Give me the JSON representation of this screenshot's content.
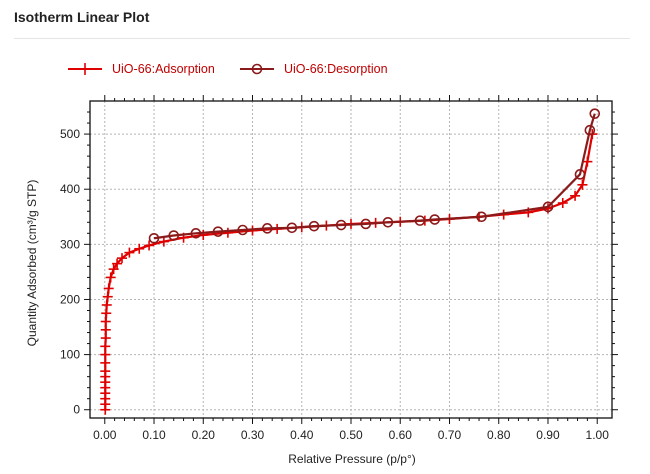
{
  "header": {
    "title": "Isotherm Linear Plot"
  },
  "chart_data": {
    "type": "line",
    "xlabel": "Relative Pressure (p/p°)",
    "ylabel": "Quantity Adsorbed (cm³/g STP)",
    "xlim": [
      -0.03,
      1.03
    ],
    "ylim": [
      -15,
      560
    ],
    "xticks": [
      0.0,
      0.1,
      0.2,
      0.3,
      0.4,
      0.5,
      0.6,
      0.7,
      0.8,
      0.9,
      1.0
    ],
    "xtick_labels": [
      "0.00",
      "0.10",
      "0.20",
      "0.30",
      "0.40",
      "0.50",
      "0.60",
      "0.70",
      "0.80",
      "0.90",
      "1.00"
    ],
    "yticks": [
      0,
      100,
      200,
      300,
      400,
      500
    ],
    "ytick_labels": [
      "0",
      "100",
      "200",
      "300",
      "400",
      "500"
    ],
    "grid": true,
    "legend_position": "top-left",
    "series": [
      {
        "name": "UiO-66:Adsorption",
        "color": "#e00000",
        "marker": "plus",
        "x": [
          0.001,
          0.001,
          0.001,
          0.001,
          0.001,
          0.001,
          0.001,
          0.001,
          0.001,
          0.001,
          0.001,
          0.002,
          0.002,
          0.002,
          0.003,
          0.004,
          0.006,
          0.008,
          0.012,
          0.018,
          0.025,
          0.035,
          0.05,
          0.07,
          0.09,
          0.12,
          0.16,
          0.2,
          0.25,
          0.3,
          0.35,
          0.4,
          0.45,
          0.5,
          0.55,
          0.6,
          0.65,
          0.7,
          0.76,
          0.81,
          0.86,
          0.9,
          0.93,
          0.955,
          0.97,
          0.98,
          0.99
        ],
        "y": [
          0,
          10,
          20,
          30,
          40,
          50,
          60,
          70,
          85,
          100,
          115,
          130,
          145,
          160,
          175,
          190,
          205,
          220,
          240,
          255,
          265,
          275,
          285,
          292,
          298,
          305,
          312,
          317,
          321,
          325,
          328,
          331,
          334,
          337,
          339,
          341,
          343,
          346,
          350,
          354,
          358,
          365,
          375,
          388,
          408,
          450,
          500
        ]
      },
      {
        "name": "UiO-66:Desorption",
        "color": "#8b1a1a",
        "marker": "circle",
        "x": [
          0.995,
          0.985,
          0.965,
          0.9,
          0.765,
          0.67,
          0.64,
          0.575,
          0.53,
          0.48,
          0.425,
          0.38,
          0.33,
          0.28,
          0.23,
          0.185,
          0.14,
          0.1
        ],
        "y": [
          537,
          507,
          427,
          368,
          350,
          345,
          343,
          340,
          337,
          335,
          333,
          330,
          329,
          326,
          323,
          320,
          316,
          311
        ]
      }
    ]
  }
}
